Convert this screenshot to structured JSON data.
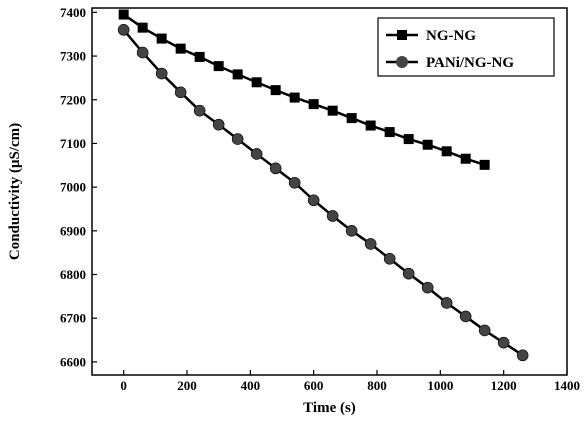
{
  "chart_data": {
    "type": "line",
    "xlabel": "Time (s)",
    "ylabel": "Conductivity (μS/cm)",
    "xlim": [
      -100,
      1400
    ],
    "ylim": [
      6570,
      7410
    ],
    "xticks": [
      0,
      200,
      400,
      600,
      800,
      1000,
      1200,
      1400
    ],
    "yticks": [
      6600,
      6700,
      6800,
      6900,
      7000,
      7100,
      7200,
      7300,
      7400
    ],
    "grid": false,
    "legend_position": "top-right",
    "series": [
      {
        "name": "NG-NG",
        "marker": "square",
        "color": "#000000",
        "x": [
          0,
          60,
          120,
          180,
          240,
          300,
          360,
          420,
          480,
          540,
          600,
          660,
          720,
          780,
          840,
          900,
          960,
          1020,
          1080,
          1140
        ],
        "y": [
          7395,
          7365,
          7340,
          7317,
          7298,
          7277,
          7258,
          7240,
          7222,
          7205,
          7190,
          7175,
          7158,
          7141,
          7126,
          7110,
          7097,
          7082,
          7065,
          7051
        ]
      },
      {
        "name": "PANi/NG-NG",
        "marker": "circle",
        "color": "#000000",
        "x": [
          0,
          60,
          120,
          180,
          240,
          300,
          360,
          420,
          480,
          540,
          600,
          660,
          720,
          780,
          840,
          900,
          960,
          1020,
          1080,
          1140,
          1200,
          1260
        ],
        "y": [
          7360,
          7308,
          7260,
          7217,
          7175,
          7143,
          7110,
          7076,
          7043,
          7010,
          6970,
          6934,
          6900,
          6870,
          6836,
          6802,
          6770,
          6735,
          6704,
          6672,
          6644,
          6615
        ]
      }
    ]
  }
}
